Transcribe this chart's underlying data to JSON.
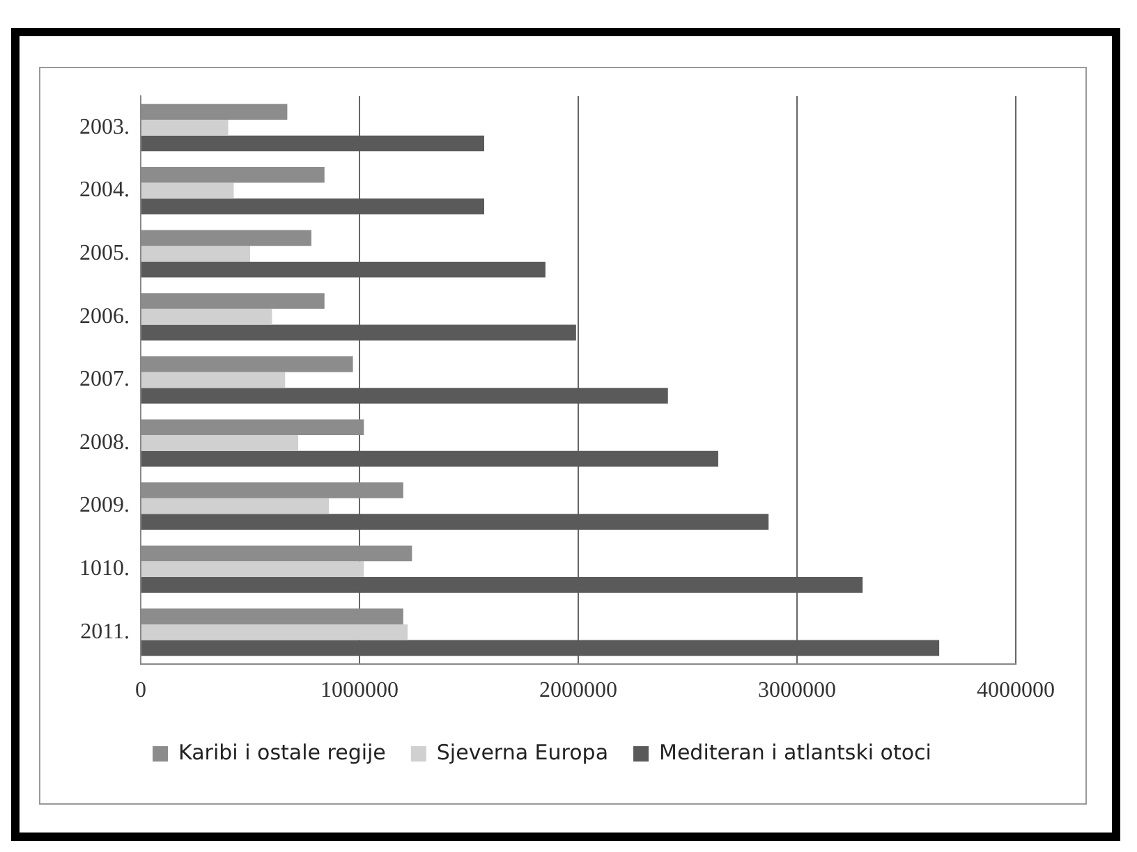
{
  "chart_data": {
    "type": "bar",
    "orientation": "horizontal",
    "categories": [
      "2003.",
      "2004.",
      "2005.",
      "2006.",
      "2007.",
      "2008.",
      "2009.",
      "1010.",
      "2011."
    ],
    "series": [
      {
        "name": "Karibi i ostale regije",
        "color": "#8c8c8c",
        "values": [
          670000,
          840000,
          780000,
          840000,
          970000,
          1020000,
          1200000,
          1240000,
          1200000
        ]
      },
      {
        "name": "Sjeverna Europa",
        "color": "#d0d0d0",
        "values": [
          400000,
          425000,
          500000,
          600000,
          660000,
          720000,
          860000,
          1020000,
          1220000
        ]
      },
      {
        "name": "Mediteran i atlantski otoci",
        "color": "#5a5a5a",
        "values": [
          1570000,
          1570000,
          1850000,
          1990000,
          2410000,
          2640000,
          2870000,
          3300000,
          3650000
        ]
      }
    ],
    "xlim": [
      0,
      4000000
    ],
    "xticks": [
      0,
      1000000,
      2000000,
      3000000,
      4000000
    ],
    "grid": "x",
    "legend": "bottom"
  }
}
